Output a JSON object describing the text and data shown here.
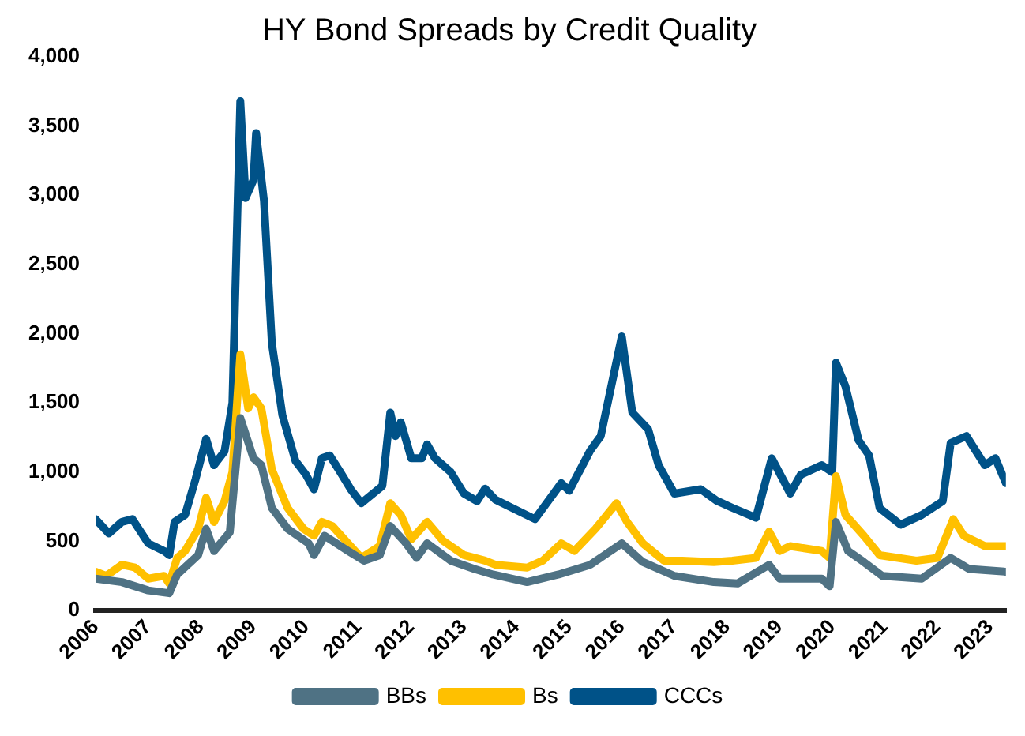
{
  "chart_data": {
    "type": "line",
    "title": "HY Bond Spreads by Credit Quality",
    "xlim": [
      2006,
      2023.3
    ],
    "xticks": [
      2006,
      2007,
      2008,
      2009,
      2010,
      2011,
      2012,
      2013,
      2014,
      2015,
      2016,
      2017,
      2018,
      2019,
      2020,
      2021,
      2022,
      2023
    ],
    "ylim": [
      0,
      4000
    ],
    "yticks": [
      0,
      500,
      {
        "value": 1000,
        "label": "1,000"
      },
      {
        "value": 1500,
        "label": "1,500"
      },
      {
        "value": 2000,
        "label": "2,000"
      },
      {
        "value": 2500,
        "label": "2,500"
      },
      {
        "value": 3000,
        "label": "3,000"
      },
      {
        "value": 3500,
        "label": "3,500"
      },
      {
        "value": 4000,
        "label": "4,000"
      }
    ],
    "grid": false,
    "legend": "bottom",
    "marker": "none",
    "line_style": "solid",
    "series": [
      {
        "name": "BBs",
        "color": "#4f7284",
        "x": [
          2006,
          2006.5,
          2007,
          2007.4,
          2007.55,
          2007.95,
          2008.1,
          2008.25,
          2008.55,
          2008.75,
          2009,
          2009.15,
          2009.35,
          2009.65,
          2010.05,
          2010.15,
          2010.35,
          2010.8,
          2011.1,
          2011.4,
          2011.6,
          2011.9,
          2012.1,
          2012.3,
          2012.75,
          2013.2,
          2013.55,
          2014.2,
          2014.8,
          2015.4,
          2016,
          2016.4,
          2017,
          2017.75,
          2018.2,
          2018.8,
          2019,
          2019.8,
          2019.95,
          2020.07,
          2020.3,
          2020.6,
          2020.95,
          2021.7,
          2022.25,
          2022.6,
          2023.3
        ],
        "values": [
          230,
          205,
          145,
          125,
          260,
          400,
          590,
          430,
          565,
          1390,
          1100,
          1050,
          740,
          590,
          485,
          400,
          540,
          430,
          360,
          400,
          610,
          485,
          380,
          485,
          360,
          300,
          260,
          205,
          260,
          330,
          485,
          350,
          250,
          205,
          195,
          330,
          230,
          230,
          175,
          640,
          430,
          350,
          250,
          230,
          380,
          300,
          280
        ]
      },
      {
        "name": "Bs",
        "color": "#ffc000",
        "x": [
          2006,
          2006.2,
          2006.5,
          2006.75,
          2007,
          2007.3,
          2007.4,
          2007.55,
          2007.7,
          2007.95,
          2008.1,
          2008.25,
          2008.45,
          2008.6,
          2008.75,
          2008.9,
          2009,
          2009.15,
          2009.35,
          2009.65,
          2009.95,
          2010.15,
          2010.3,
          2010.5,
          2010.75,
          2011.05,
          2011.4,
          2011.6,
          2011.8,
          2012,
          2012.3,
          2012.6,
          2013,
          2013.4,
          2013.6,
          2014.2,
          2014.5,
          2014.85,
          2015.1,
          2015.5,
          2015.9,
          2016.1,
          2016.4,
          2016.8,
          2017.15,
          2017.75,
          2018.1,
          2018.55,
          2018.8,
          2019,
          2019.2,
          2019.8,
          2019.95,
          2020.07,
          2020.25,
          2020.6,
          2020.9,
          2021.6,
          2022,
          2022.3,
          2022.5,
          2022.9,
          2023.3
        ],
        "values": [
          280,
          250,
          330,
          310,
          230,
          250,
          195,
          380,
          430,
          590,
          815,
          640,
          790,
          1000,
          1850,
          1460,
          1540,
          1460,
          1020,
          740,
          590,
          540,
          640,
          610,
          505,
          380,
          465,
          775,
          690,
          515,
          640,
          505,
          400,
          360,
          330,
          310,
          360,
          485,
          430,
          590,
          775,
          640,
          485,
          360,
          360,
          350,
          360,
          380,
          570,
          430,
          465,
          430,
          380,
          970,
          690,
          540,
          400,
          360,
          380,
          660,
          540,
          465,
          465
        ]
      },
      {
        "name": "CCCs",
        "color": "#005288",
        "x": [
          2006,
          2006.25,
          2006.5,
          2006.7,
          2007,
          2007.3,
          2007.4,
          2007.5,
          2007.7,
          2007.9,
          2008.1,
          2008.25,
          2008.45,
          2008.6,
          2008.75,
          2008.85,
          2009,
          2009.05,
          2009.2,
          2009.35,
          2009.55,
          2009.8,
          2010,
          2010.15,
          2010.3,
          2010.45,
          2010.65,
          2010.85,
          2011.05,
          2011.45,
          2011.6,
          2011.7,
          2011.8,
          2012,
          2012.2,
          2012.3,
          2012.45,
          2012.75,
          2013,
          2013.25,
          2013.4,
          2013.6,
          2014.35,
          2014.85,
          2015,
          2015.4,
          2015.6,
          2016,
          2016.2,
          2016.5,
          2016.7,
          2017,
          2017.5,
          2017.8,
          2018.1,
          2018.55,
          2018.85,
          2019.1,
          2019.2,
          2019.4,
          2019.8,
          2020,
          2020.07,
          2020.25,
          2020.5,
          2020.7,
          2020.9,
          2021.3,
          2021.7,
          2022.1,
          2022.25,
          2022.55,
          2022.9,
          2023.1,
          2023.3
        ],
        "values": [
          660,
          557,
          640,
          660,
          485,
          430,
          400,
          640,
          690,
          950,
          1240,
          1050,
          1150,
          1500,
          3680,
          2980,
          3110,
          3450,
          2960,
          1930,
          1410,
          1080,
          980,
          875,
          1100,
          1120,
          1000,
          875,
          775,
          900,
          1430,
          1260,
          1360,
          1100,
          1100,
          1200,
          1100,
          1000,
          845,
          790,
          880,
          800,
          660,
          920,
          865,
          1155,
          1260,
          1980,
          1430,
          1310,
          1050,
          845,
          876,
          794,
          742,
          670,
          1100,
          920,
          845,
          980,
          1050,
          1000,
          1790,
          1620,
          1230,
          1120,
          740,
          620,
          690,
          790,
          1210,
          1260,
          1050,
          1100,
          920
        ]
      }
    ]
  }
}
